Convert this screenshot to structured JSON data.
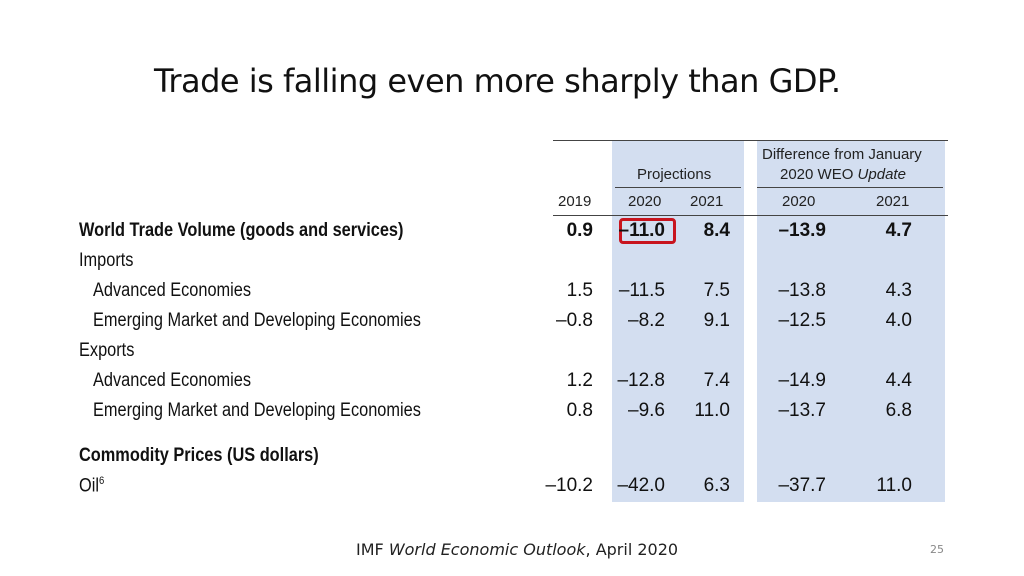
{
  "slide": {
    "title": "Trade is falling even more sharply than GDP.",
    "number": "25"
  },
  "source": {
    "prefix": "IMF ",
    "publication": "World Economic Outlook",
    "suffix": ", April 2020"
  },
  "table": {
    "group_headers": {
      "projections": "Projections",
      "difference_line1": "Difference from January",
      "difference_line2": "2020 WEO ",
      "difference_line2_italic": "Update"
    },
    "columns": [
      "2019",
      "2020",
      "2021",
      "2020",
      "2021"
    ],
    "rows": [
      {
        "label": "World Trade Volume (goods and services)",
        "values": [
          "0.9",
          "–11.0",
          "8.4",
          "–13.9",
          "4.7"
        ]
      },
      {
        "label": "Imports",
        "values": []
      },
      {
        "label": "Advanced Economies",
        "values": [
          "1.5",
          "–11.5",
          "7.5",
          "–13.8",
          "4.3"
        ]
      },
      {
        "label": "Emerging Market and Developing Economies",
        "values": [
          "–0.8",
          "–8.2",
          "9.1",
          "–12.5",
          "4.0"
        ]
      },
      {
        "label": "Exports",
        "values": []
      },
      {
        "label": "Advanced Economies",
        "values": [
          "1.2",
          "–12.8",
          "7.4",
          "–14.9",
          "4.4"
        ]
      },
      {
        "label": "Emerging Market and Developing Economies",
        "values": [
          "0.8",
          "–9.6",
          "11.0",
          "–13.7",
          "6.8"
        ]
      },
      {
        "label": "Commodity Prices (US dollars)",
        "values": []
      },
      {
        "label": "Oil",
        "label_sup": "6",
        "values": [
          "–10.2",
          "–42.0",
          "6.3",
          "–37.7",
          "11.0"
        ]
      }
    ]
  }
}
